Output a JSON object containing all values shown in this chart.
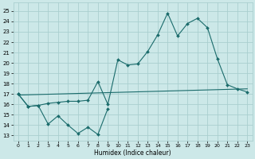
{
  "xlabel": "Humidex (Indice chaleur)",
  "bg_color": "#cce8e8",
  "grid_color": "#aacfcf",
  "line_color": "#1a6b6b",
  "xlim": [
    -0.5,
    23.5
  ],
  "ylim": [
    12.5,
    25.8
  ],
  "yticks": [
    13,
    14,
    15,
    16,
    17,
    18,
    19,
    20,
    21,
    22,
    23,
    24,
    25
  ],
  "xticks": [
    0,
    1,
    2,
    3,
    4,
    5,
    6,
    7,
    8,
    9,
    10,
    11,
    12,
    13,
    14,
    15,
    16,
    17,
    18,
    19,
    20,
    21,
    22,
    23
  ],
  "series_low": {
    "x": [
      0,
      1,
      2,
      3,
      4,
      5,
      6,
      7,
      8,
      9
    ],
    "y": [
      17.0,
      15.8,
      15.9,
      14.1,
      14.9,
      14.0,
      13.2,
      13.8,
      13.1,
      15.6
    ]
  },
  "series_main": {
    "x": [
      0,
      1,
      2,
      3,
      4,
      5,
      6,
      7,
      8,
      9,
      10,
      11,
      12,
      13,
      14,
      15,
      16,
      17,
      18,
      19,
      20,
      21,
      22,
      23
    ],
    "y": [
      17.0,
      15.8,
      15.9,
      16.1,
      16.2,
      16.3,
      16.3,
      16.4,
      18.2,
      16.0,
      20.3,
      19.8,
      19.9,
      21.1,
      22.7,
      24.8,
      22.6,
      23.8,
      24.3,
      23.4,
      20.4,
      17.9,
      17.5,
      17.2
    ]
  },
  "series_trend": {
    "x": [
      0,
      23
    ],
    "y": [
      16.9,
      17.5
    ]
  }
}
